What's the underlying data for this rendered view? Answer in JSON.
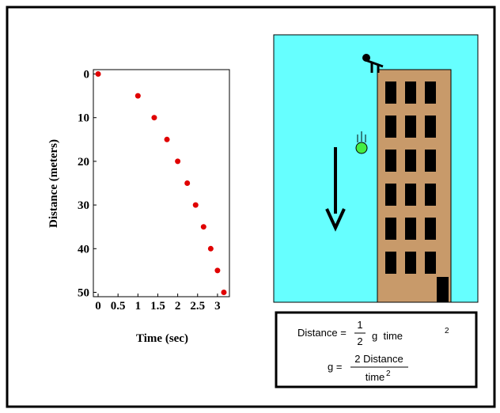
{
  "chart_data": {
    "type": "scatter",
    "x_label": "Time (sec)",
    "y_label": "Distance (meters)",
    "x": [
      0,
      1,
      1.41,
      1.73,
      2,
      2.24,
      2.45,
      2.65,
      2.83,
      3,
      3.16
    ],
    "values": [
      0,
      5,
      10,
      15,
      20,
      25,
      30,
      35,
      40,
      45,
      50
    ],
    "color": "#e00000",
    "xlim": [
      -0.12,
      3.3
    ],
    "ylim": [
      -1,
      51
    ],
    "y_inverted": true,
    "xticks": [
      0,
      0.5,
      1,
      1.5,
      2,
      2.5,
      3
    ],
    "yticks": [
      0,
      10,
      20,
      30,
      40,
      50
    ]
  },
  "diagram": {
    "formula_1": {
      "lhs": "Distance =",
      "numerator": "1",
      "denominator": "2",
      "rest": "g  time",
      "exponent": "2"
    },
    "formula_2": {
      "lhs": "g =",
      "numerator": "2 Distance",
      "denominator": "time",
      "exponent": "2"
    }
  }
}
